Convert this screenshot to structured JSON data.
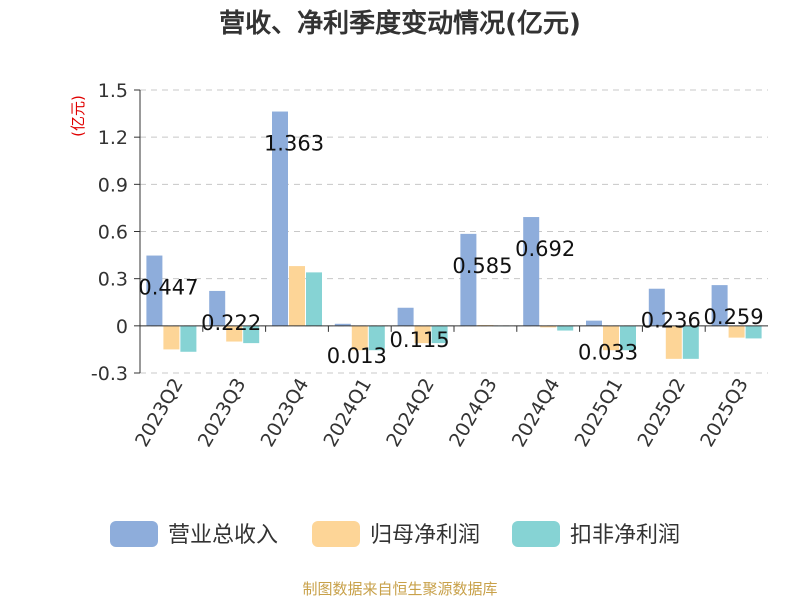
{
  "chart_data": {
    "type": "bar",
    "title": "营收、净利季度变动情况(亿元)",
    "ylabel": "(亿元)",
    "ylim": [
      -0.3,
      1.5
    ],
    "yticks": [
      "-0.3",
      "0",
      "0.3",
      "0.6",
      "0.9",
      "1.2",
      "1.5"
    ],
    "ytick_values": [
      -0.3,
      0,
      0.3,
      0.6,
      0.9,
      1.2,
      1.5
    ],
    "grid": true,
    "legend_position": "bottom",
    "categories": [
      "2023Q2",
      "2023Q3",
      "2023Q4",
      "2024Q1",
      "2024Q2",
      "2024Q3",
      "2024Q4",
      "2025Q1",
      "2025Q2",
      "2025Q3"
    ],
    "series": [
      {
        "name": "营业总收入",
        "color": "#8eaddb",
        "values": [
          0.447,
          0.222,
          1.363,
          0.013,
          0.115,
          0.585,
          0.692,
          0.033,
          0.236,
          0.259
        ],
        "labels": [
          "0.447",
          "0.222",
          "1.363",
          "0.013",
          "0.115",
          "0.585",
          "0.692",
          "0.033",
          "0.236",
          "0.259"
        ]
      },
      {
        "name": "归母净利润",
        "color": "#fdd597",
        "values": [
          -0.15,
          -0.1,
          0.38,
          -0.155,
          -0.11,
          0.005,
          -0.01,
          -0.155,
          -0.21,
          -0.075
        ]
      },
      {
        "name": "扣非净利润",
        "color": "#86d3d4",
        "values": [
          -0.165,
          -0.11,
          0.34,
          -0.155,
          -0.11,
          0.002,
          -0.03,
          -0.155,
          -0.21,
          -0.08
        ]
      }
    ],
    "source": "制图数据来自恒生聚源数据库"
  }
}
